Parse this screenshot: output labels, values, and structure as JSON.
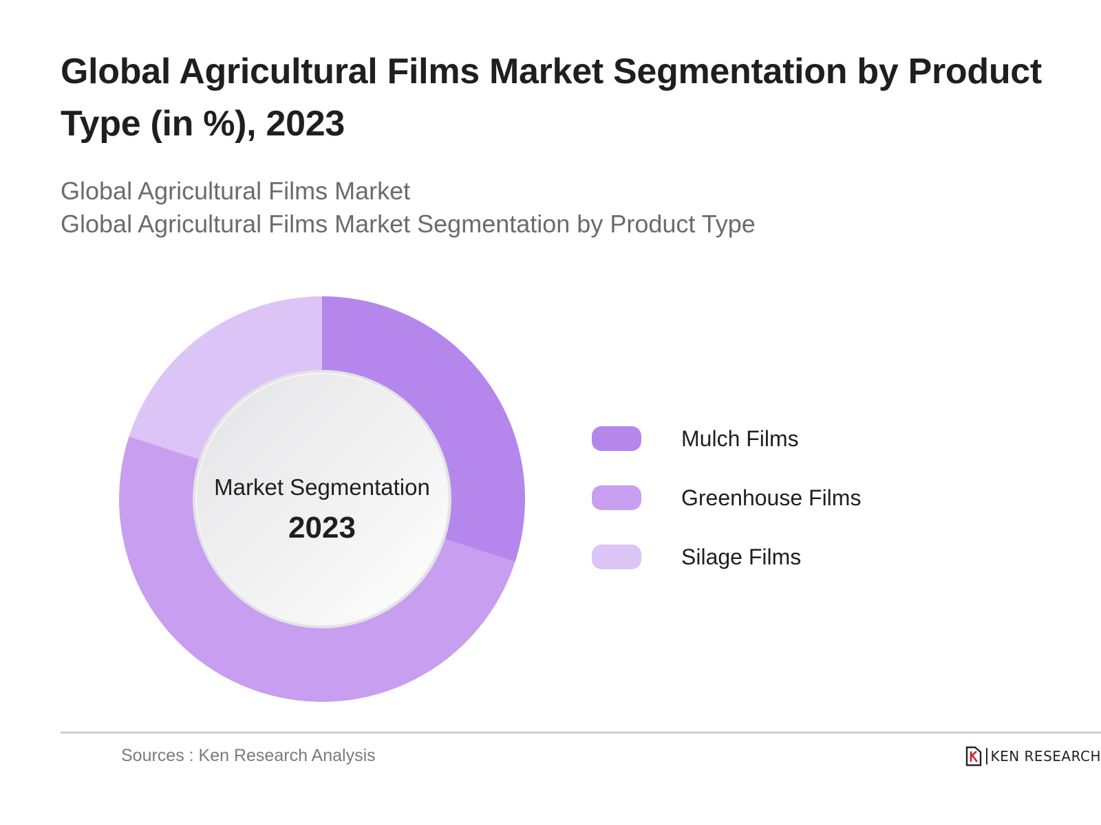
{
  "title": "Global Agricultural Films Market Segmentation by Product Type (in %), 2023",
  "subtitle": {
    "line1": "Global Agricultural Films Market",
    "line2": "Global Agricultural Films Market Segmentation by Product Type"
  },
  "chart_data": {
    "type": "pie",
    "variant": "donut",
    "center_label": "Market Segmentation",
    "center_value": "2023",
    "categories": [
      "Mulch Films",
      "Greenhouse Films",
      "Silage Films"
    ],
    "values": [
      30,
      50,
      20
    ],
    "colors": [
      "#b586ec",
      "#c79ef0",
      "#dcc4f7"
    ],
    "legend_position": "right"
  },
  "footer": {
    "source": "Sources : Ken Research Analysis",
    "brand": "KEN RESEARCH",
    "brand_icon": "ken-research-logo-icon"
  }
}
